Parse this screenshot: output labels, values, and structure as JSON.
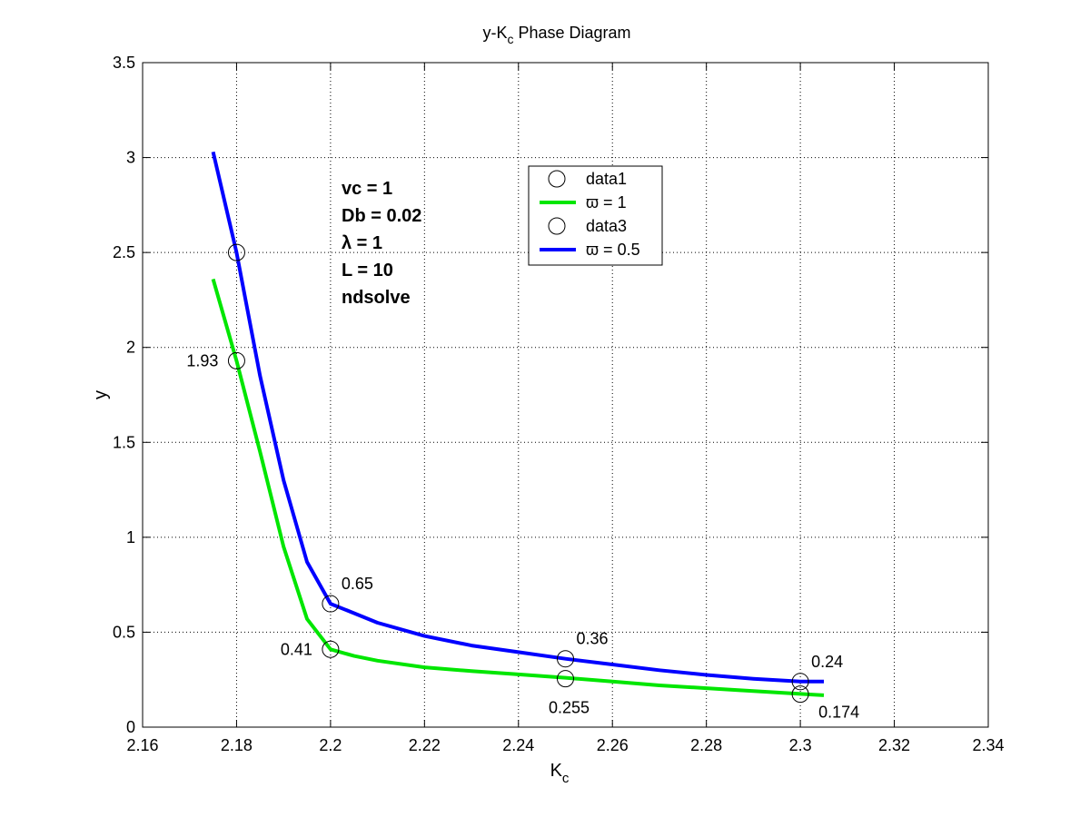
{
  "chart_data": {
    "type": "line",
    "title": "y-K",
    "title_sub": "c",
    "title_rest": " Phase Diagram",
    "xlabel": "K",
    "xlabel_sub": "c",
    "ylabel": "y",
    "xlim": [
      2.16,
      2.34
    ],
    "ylim": [
      0,
      3.5
    ],
    "xticks": [
      "2.16",
      "2.18",
      "2.2",
      "2.22",
      "2.24",
      "2.26",
      "2.28",
      "2.3",
      "2.32",
      "2.34"
    ],
    "yticks": [
      "0",
      "0.5",
      "1",
      "1.5",
      "2",
      "2.5",
      "3",
      "3.5"
    ],
    "grid": true,
    "legend_position": "upper-center",
    "series": [
      {
        "name": "data1",
        "kind": "markers",
        "marker": "circle",
        "color": "#000000",
        "x": [
          2.18,
          2.2,
          2.25,
          2.3
        ],
        "y": [
          1.93,
          0.41,
          0.255,
          0.174
        ]
      },
      {
        "name": "ϖ = 1",
        "kind": "line",
        "color": "#00e600",
        "x": [
          2.175,
          2.18,
          2.185,
          2.19,
          2.195,
          2.2,
          2.205,
          2.21,
          2.22,
          2.23,
          2.24,
          2.25,
          2.26,
          2.27,
          2.28,
          2.29,
          2.3,
          2.305
        ],
        "y": [
          2.36,
          1.93,
          1.45,
          0.95,
          0.57,
          0.41,
          0.375,
          0.35,
          0.315,
          0.295,
          0.278,
          0.26,
          0.24,
          0.22,
          0.205,
          0.19,
          0.175,
          0.168
        ]
      },
      {
        "name": "data3",
        "kind": "markers",
        "marker": "circle",
        "color": "#000000",
        "x": [
          2.18,
          2.2,
          2.25,
          2.3
        ],
        "y": [
          2.5,
          0.65,
          0.36,
          0.24
        ]
      },
      {
        "name": "ϖ = 0.5",
        "kind": "line",
        "color": "#0000ff",
        "x": [
          2.175,
          2.18,
          2.185,
          2.19,
          2.195,
          2.2,
          2.205,
          2.21,
          2.22,
          2.23,
          2.24,
          2.25,
          2.26,
          2.27,
          2.28,
          2.29,
          2.3,
          2.305
        ],
        "y": [
          3.03,
          2.5,
          1.85,
          1.3,
          0.87,
          0.65,
          0.6,
          0.55,
          0.48,
          0.43,
          0.395,
          0.36,
          0.33,
          0.3,
          0.275,
          0.255,
          0.24,
          0.24
        ]
      }
    ],
    "data_labels": [
      {
        "text": "1.93",
        "x": 2.18,
        "y": 1.93,
        "anchor": "left"
      },
      {
        "text": "0.41",
        "x": 2.2,
        "y": 0.41,
        "anchor": "left"
      },
      {
        "text": "0.255",
        "x": 2.25,
        "y": 0.255,
        "anchor": "below"
      },
      {
        "text": "0.174",
        "x": 2.3,
        "y": 0.174,
        "anchor": "below-right"
      },
      {
        "text": "0.65",
        "x": 2.2,
        "y": 0.65,
        "anchor": "above-right"
      },
      {
        "text": "0.36",
        "x": 2.25,
        "y": 0.36,
        "anchor": "above-right"
      },
      {
        "text": "0.24",
        "x": 2.3,
        "y": 0.24,
        "anchor": "above-right"
      }
    ],
    "annotations": [
      "vc = 1",
      "Db = 0.02",
      "λ = 1",
      "L = 10",
      "ndsolve"
    ]
  }
}
